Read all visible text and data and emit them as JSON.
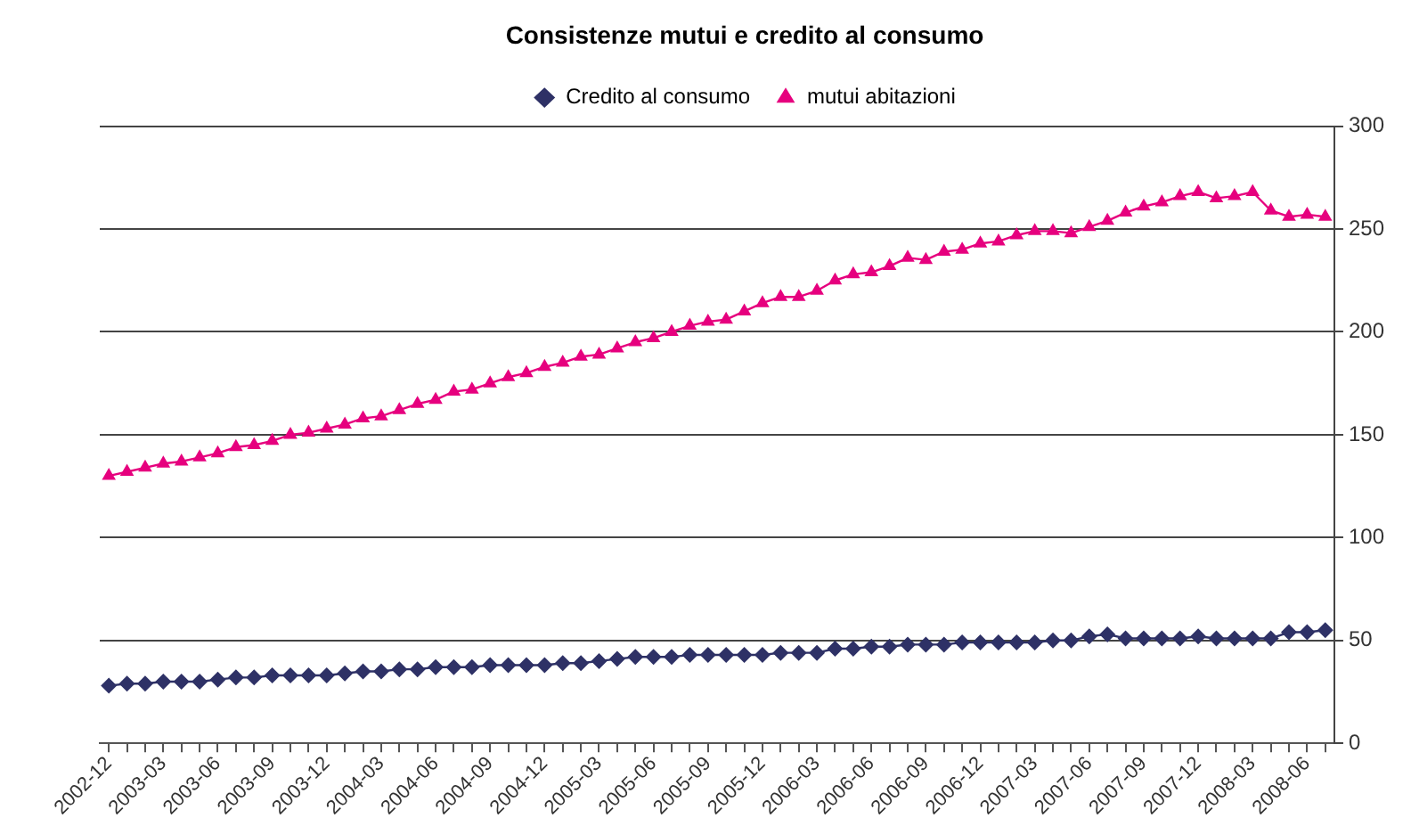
{
  "chart_data": {
    "type": "line",
    "title": "Consistenze mutui e credito al consumo",
    "categories": [
      "2002-12",
      null,
      null,
      "2003-03",
      null,
      null,
      "2003-06",
      null,
      null,
      "2003-09",
      null,
      null,
      "2003-12",
      null,
      null,
      "2004-03",
      null,
      null,
      "2004-06",
      null,
      null,
      "2004-09",
      null,
      null,
      "2004-12",
      null,
      null,
      "2005-03",
      null,
      null,
      "2005-06",
      null,
      null,
      "2005-09",
      null,
      null,
      "2005-12",
      null,
      null,
      "2006-03",
      null,
      null,
      "2006-06",
      null,
      null,
      "2006-09",
      null,
      null,
      "2006-12",
      null,
      null,
      "2007-03",
      null,
      null,
      "2007-06",
      null,
      null,
      "2007-09",
      null,
      null,
      "2007-12",
      null,
      null,
      "2008-03",
      null,
      null,
      "2008-06",
      null
    ],
    "series": [
      {
        "name": "Credito al consumo",
        "color": "#2e3166",
        "marker": "diamond",
        "values": [
          28,
          29,
          29,
          30,
          30,
          30,
          31,
          32,
          32,
          33,
          33,
          33,
          33,
          34,
          35,
          35,
          36,
          36,
          37,
          37,
          37,
          38,
          38,
          38,
          38,
          39,
          39,
          40,
          41,
          42,
          42,
          42,
          43,
          43,
          43,
          43,
          43,
          44,
          44,
          44,
          46,
          46,
          47,
          47,
          48,
          48,
          48,
          49,
          49,
          49,
          49,
          49,
          50,
          50,
          52,
          53,
          51,
          51,
          51,
          51,
          52,
          51,
          51,
          51,
          51,
          54,
          54,
          55
        ]
      },
      {
        "name": "mutui abitazioni",
        "color": "#e6007e",
        "marker": "triangle",
        "values": [
          130,
          132,
          134,
          136,
          137,
          139,
          141,
          144,
          145,
          147,
          150,
          151,
          153,
          155,
          158,
          159,
          162,
          165,
          167,
          171,
          172,
          175,
          178,
          180,
          183,
          185,
          188,
          189,
          192,
          195,
          197,
          200,
          203,
          205,
          206,
          210,
          214,
          217,
          217,
          220,
          225,
          228,
          229,
          232,
          236,
          235,
          239,
          240,
          243,
          244,
          247,
          249,
          249,
          248,
          251,
          254,
          258,
          261,
          263,
          266,
          268,
          265,
          266,
          268,
          259,
          256,
          257,
          256
        ]
      }
    ],
    "ylim": [
      0,
      300
    ],
    "yticks": [
      0,
      50,
      100,
      150,
      200,
      250,
      300
    ],
    "grid": "y",
    "legend": "top",
    "line_style": "solid"
  }
}
